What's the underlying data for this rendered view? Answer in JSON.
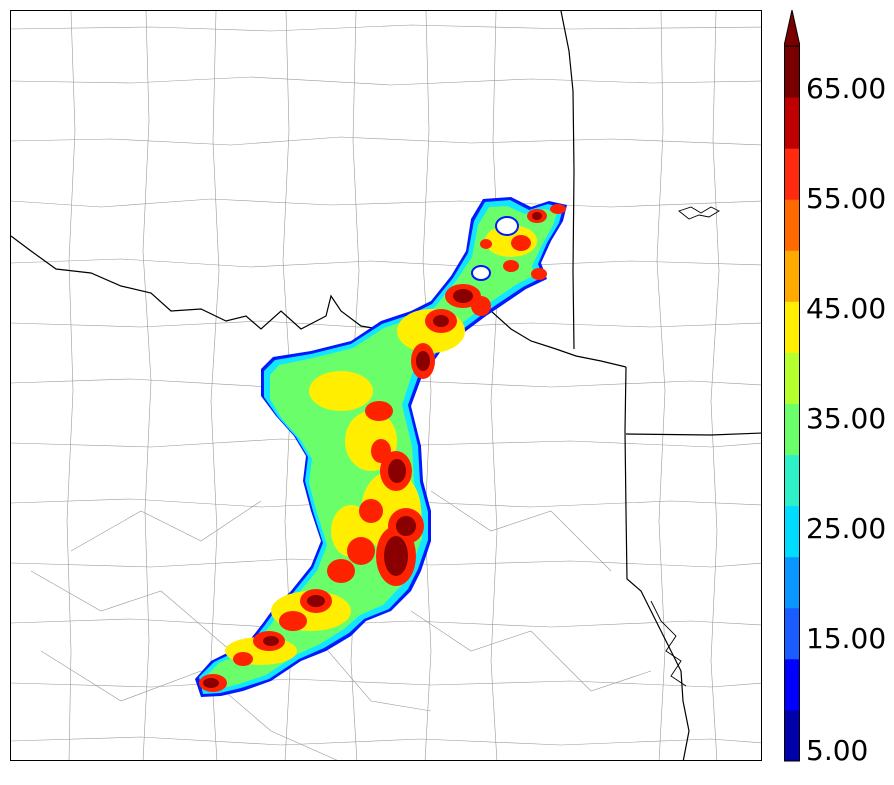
{
  "colorbar": {
    "tick_labels": [
      "5.00",
      "15.00",
      "25.00",
      "35.00",
      "45.00",
      "55.00",
      "65.00"
    ],
    "levels": [
      5,
      10,
      15,
      20,
      25,
      30,
      35,
      40,
      45,
      50,
      55,
      60,
      65,
      70
    ],
    "extend": "max",
    "colors": [
      "#0000a8",
      "#0000ff",
      "#1a5cff",
      "#0a96ff",
      "#00dcff",
      "#2ef0c8",
      "#6aff6a",
      "#b4ff2e",
      "#ffee00",
      "#ffaa00",
      "#ff6a00",
      "#ff2a10",
      "#c00000",
      "#7a0000"
    ]
  },
  "map": {
    "field_colors": {
      "outline": "#0018ff",
      "low": "#12e6ff",
      "mid": "#6aff6a",
      "high": "#ffee00",
      "orange": "#ff9a00",
      "red": "#ff2200",
      "maroon": "#8a0000"
    }
  }
}
